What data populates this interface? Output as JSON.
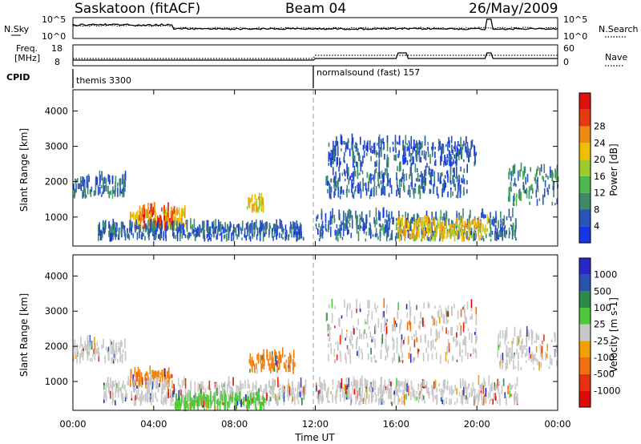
{
  "header": {
    "station_title": "Saskatoon (fitACF)",
    "beam_title": "Beam 04",
    "date_title": "26/May/2009"
  },
  "chart_data": [
    {
      "type": "line",
      "panel": "nsky-nsearch",
      "left_label": "N.Sky",
      "right_label": "N.Search",
      "left_ticks": [
        "10^5",
        "10^0"
      ],
      "right_ticks": [
        "10^5",
        "10^0"
      ],
      "scale": "log",
      "ylim": [
        1,
        100000
      ]
    },
    {
      "type": "line",
      "panel": "freq-nave",
      "left_label_1": "Freq.",
      "left_label_2": "[MHz]",
      "right_label": "Nave",
      "left_ticks": [
        18,
        8
      ],
      "right_ticks": [
        60,
        0
      ],
      "cpid_label": "CPID",
      "modes": [
        {
          "name": "themis 3300",
          "start_hour": 0
        },
        {
          "name": "normalsound (fast) 157",
          "start_hour": 12
        }
      ]
    },
    {
      "type": "heatmap",
      "panel": "power",
      "ylabel": "Slant Range [km]",
      "ylim": [
        180,
        4600
      ],
      "yticks": [
        1000,
        2000,
        3000,
        4000
      ],
      "colorbar_label": "Power [dB]",
      "colorbar_ticks": [
        4,
        8,
        12,
        16,
        20,
        24,
        28
      ],
      "colorbar_colors": [
        "#1436e6",
        "#2a55b8",
        "#3f8a6a",
        "#4ab84a",
        "#9ccc2a",
        "#f0c000",
        "#f08a10",
        "#e83a10",
        "#e01010"
      ],
      "range": [
        0,
        32
      ],
      "blobs": [
        {
          "t0": 0.0,
          "t1": 2.6,
          "r0": 1500,
          "r1": 2050,
          "level": 7
        },
        {
          "t0": 2.8,
          "t1": 5.6,
          "r0": 600,
          "r1": 1100,
          "level": 20
        },
        {
          "t0": 3.2,
          "t1": 5.0,
          "r0": 600,
          "r1": 1200,
          "level": 26
        },
        {
          "t0": 1.2,
          "t1": 11.5,
          "r0": 300,
          "r1": 700,
          "level": 6
        },
        {
          "t0": 8.6,
          "t1": 9.4,
          "r0": 1100,
          "r1": 1500,
          "level": 18
        },
        {
          "t0": 12.5,
          "t1": 19.5,
          "r0": 1500,
          "r1": 2300,
          "level": 6
        },
        {
          "t0": 12.6,
          "t1": 20.0,
          "r0": 2400,
          "r1": 3100,
          "level": 5
        },
        {
          "t0": 12.0,
          "t1": 22.0,
          "r0": 300,
          "r1": 1000,
          "level": 7
        },
        {
          "t0": 16.0,
          "t1": 20.5,
          "r0": 300,
          "r1": 800,
          "level": 19
        },
        {
          "t0": 21.5,
          "t1": 24.0,
          "r0": 1300,
          "r1": 2300,
          "level": 9
        }
      ]
    },
    {
      "type": "heatmap",
      "panel": "velocity",
      "ylabel": "Slant Range [km]",
      "ylim": [
        180,
        4600
      ],
      "yticks": [
        1000,
        2000,
        3000,
        4000
      ],
      "colorbar_label": "Velocity [m s-1]",
      "colorbar_ticks": [
        1000,
        500,
        100,
        25,
        -25,
        -100,
        -500,
        -1000
      ],
      "colorbar_colors": [
        "#2828c8",
        "#2a50b0",
        "#2e8a4a",
        "#4cc83a",
        "#c8c8c8",
        "#f0a000",
        "#f07010",
        "#e83010",
        "#e00a0a"
      ],
      "blobs": [
        {
          "t0": 0.0,
          "t1": 2.6,
          "r0": 1500,
          "r1": 2050,
          "color": "#c8c8c8"
        },
        {
          "t0": 2.8,
          "t1": 5.0,
          "r0": 800,
          "r1": 1200,
          "color": "#f08010"
        },
        {
          "t0": 1.5,
          "t1": 11.5,
          "r0": 300,
          "r1": 900,
          "color": "#c8c8c8"
        },
        {
          "t0": 5.0,
          "t1": 9.5,
          "r0": 150,
          "r1": 500,
          "color": "#4cc83a"
        },
        {
          "t0": 8.7,
          "t1": 11.0,
          "r0": 1200,
          "r1": 1700,
          "color": "#f08010"
        },
        {
          "t0": 12.5,
          "t1": 20.0,
          "r0": 1500,
          "r1": 3100,
          "color": "#c8c8c8"
        },
        {
          "t0": 12.0,
          "t1": 22.0,
          "r0": 300,
          "r1": 900,
          "color": "#c8c8c8"
        },
        {
          "t0": 21.0,
          "t1": 24.0,
          "r0": 1300,
          "r1": 2300,
          "color": "#c8c8c8"
        }
      ]
    }
  ],
  "x_axis": {
    "xlabel": "Time UT",
    "ticks": [
      "00:00",
      "04:00",
      "08:00",
      "12:00",
      "16:00",
      "20:00",
      "00:00"
    ],
    "xlim": [
      0,
      24
    ]
  }
}
